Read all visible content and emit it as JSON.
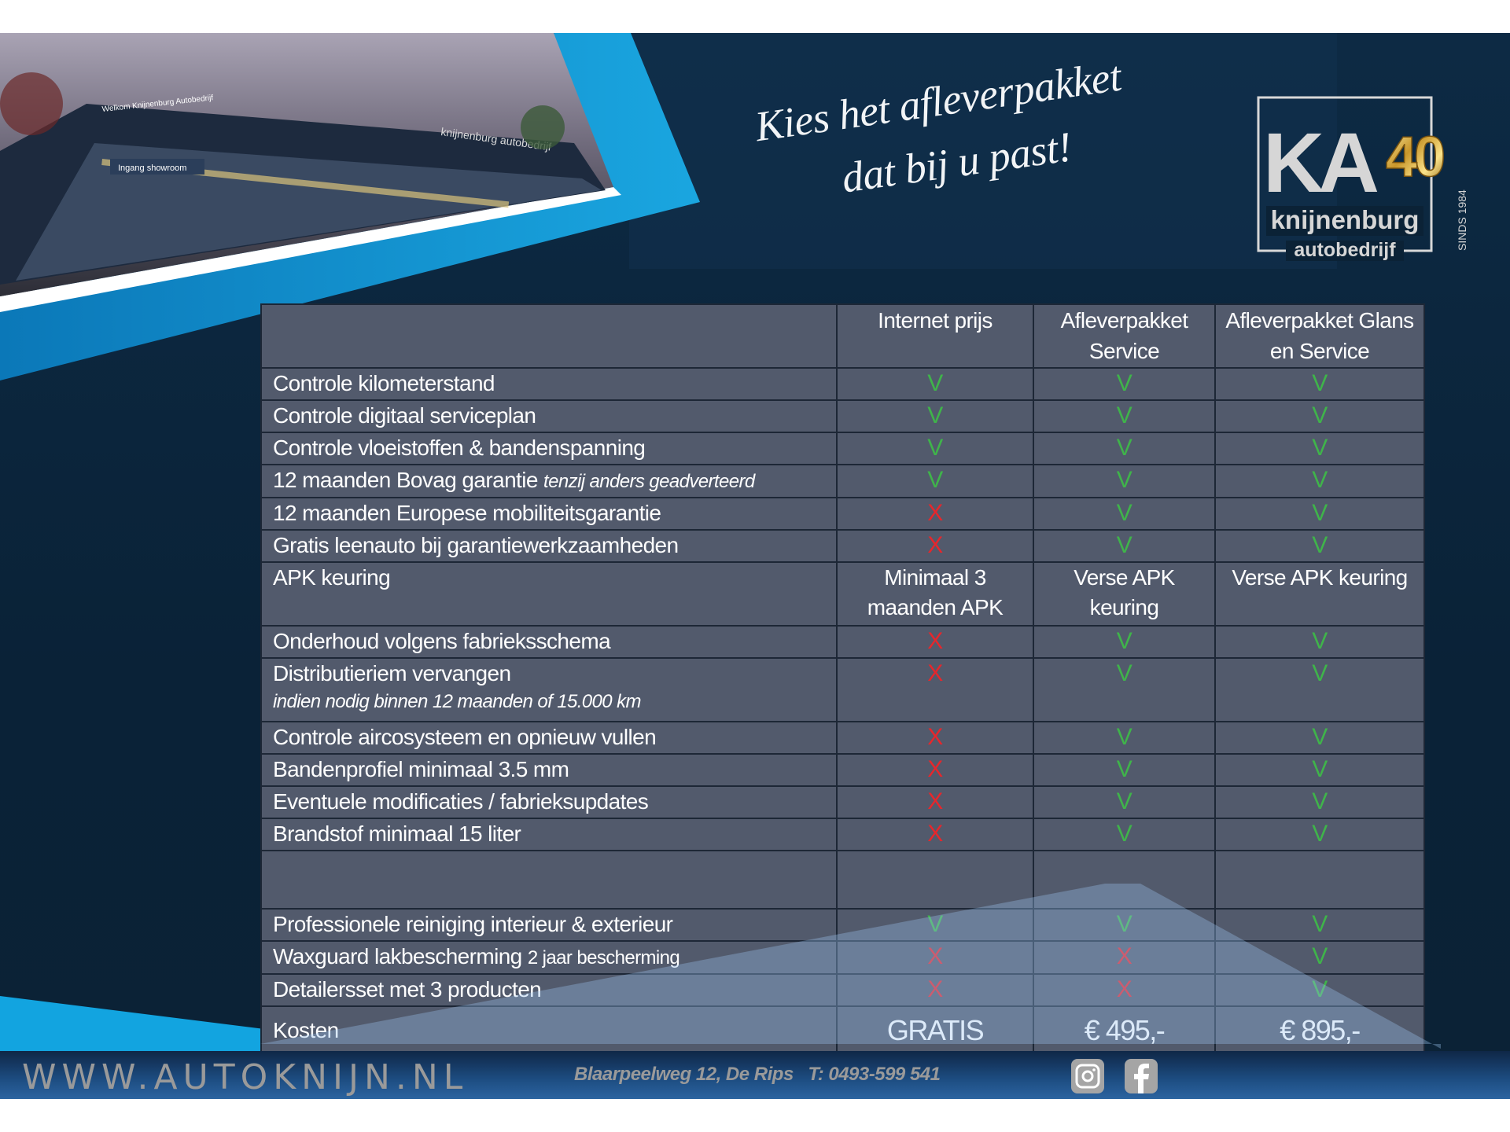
{
  "headline": {
    "line1": "Kies het afleverpakket",
    "line2": "dat bij u past!"
  },
  "logo": {
    "mark": "KA",
    "anniversary": "40",
    "name": "knijnenburg",
    "sub": "autobedrijf",
    "since": "SINDS 1984"
  },
  "photo": {
    "sign1": "Welkom Knijnenburg Autobedrijf",
    "sign2": "Ingang showroom",
    "sign3": "knijnenburg autobedrijf"
  },
  "colors": {
    "background": "#0b2236",
    "table": "#525a6c",
    "accent_blue": "#19a0dc",
    "yes": "#3fb44a",
    "no": "#e8262b"
  },
  "table": {
    "columns": [
      "Internet prijs",
      "Afleverpakket Service",
      "Afleverpakket Glans en Service"
    ],
    "rows": [
      {
        "label": "Controle kilometerstand",
        "values": [
          "V",
          "V",
          "V"
        ]
      },
      {
        "label": "Controle digitaal serviceplan",
        "values": [
          "V",
          "V",
          "V"
        ]
      },
      {
        "label": "Controle vloeistoffen & bandenspanning",
        "values": [
          "V",
          "V",
          "V"
        ]
      },
      {
        "label": "12 maanden Bovag garantie",
        "note": "tenzij anders geadverteerd",
        "note_style": "inline",
        "values": [
          "V",
          "V",
          "V"
        ]
      },
      {
        "label": "12 maanden Europese mobiliteitsgarantie",
        "values": [
          "X",
          "V",
          "V"
        ]
      },
      {
        "label": "Gratis leenauto bij garantiewerkzaamheden",
        "values": [
          "X",
          "V",
          "V"
        ]
      },
      {
        "label": "APK keuring",
        "type": "double",
        "values": [
          "Minimaal 3 maanden APK",
          "Verse APK keuring",
          "Verse APK keuring"
        ]
      },
      {
        "label": "Onderhoud volgens fabrieksschema",
        "values": [
          "X",
          "V",
          "V"
        ]
      },
      {
        "label": "Distributieriem vervangen",
        "note": "indien nodig binnen 12 maanden of 15.000 km",
        "note_style": "below",
        "type": "double",
        "values": [
          "X",
          "V",
          "V"
        ]
      },
      {
        "label": "Controle aircosysteem en opnieuw vullen",
        "values": [
          "X",
          "V",
          "V"
        ]
      },
      {
        "label": "Bandenprofiel minimaal 3.5 mm",
        "values": [
          "X",
          "V",
          "V"
        ]
      },
      {
        "label": "Eventuele modificaties / fabrieksupdates",
        "values": [
          "X",
          "V",
          "V"
        ]
      },
      {
        "label": "Brandstof minimaal 15 liter",
        "values": [
          "X",
          "V",
          "V"
        ]
      },
      {
        "label": "",
        "type": "empty",
        "values": [
          "",
          "",
          ""
        ]
      },
      {
        "label": "Professionele reiniging interieur & exterieur",
        "values": [
          "V",
          "V",
          "V"
        ]
      },
      {
        "label": "Waxguard lakbescherming",
        "note": "2 jaar bescherming",
        "note_style": "small",
        "values": [
          "X",
          "X",
          "V"
        ]
      },
      {
        "label": "Detailersset met 3 producten",
        "values": [
          "X",
          "X",
          "V"
        ]
      },
      {
        "label": "Kosten",
        "type": "price",
        "values": [
          "GRATIS",
          "€ 495,-",
          "€ 895,-"
        ]
      }
    ]
  },
  "footer": {
    "website": "WWW.AUTOKNIJN.NL",
    "address": "Blaarpeelweg 12, De Rips",
    "phone": "T: 0493-599 541",
    "icons": [
      "instagram-icon",
      "facebook-icon"
    ]
  }
}
